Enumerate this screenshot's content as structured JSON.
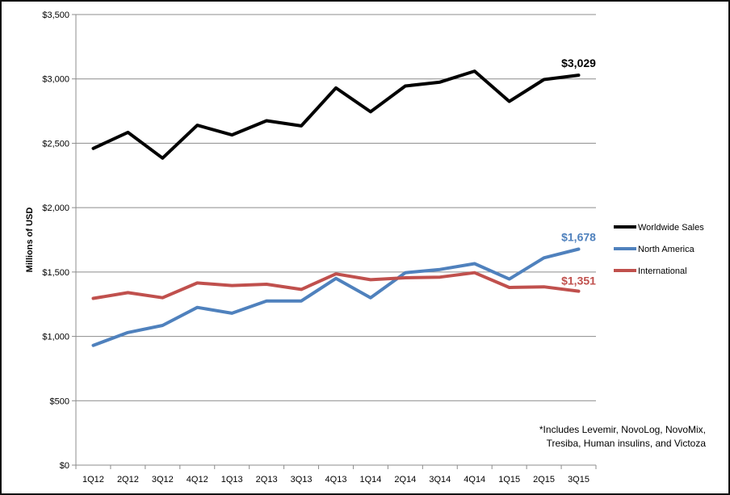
{
  "chart_data": {
    "type": "line",
    "ylabel": "Millions of USD",
    "xlabel": "",
    "ylim": [
      0,
      3500
    ],
    "yticks": [
      0,
      500,
      1000,
      1500,
      2000,
      2500,
      3000,
      3500
    ],
    "ytick_labels": [
      "$0",
      "$500",
      "$1,000",
      "$1,500",
      "$2,000",
      "$2,500",
      "$3,000",
      "$3,500"
    ],
    "categories": [
      "1Q12",
      "2Q12",
      "3Q12",
      "4Q12",
      "1Q13",
      "2Q13",
      "3Q13",
      "4Q13",
      "1Q14",
      "2Q14",
      "3Q14",
      "4Q14",
      "1Q15",
      "2Q15",
      "3Q15"
    ],
    "grid": "horizontal",
    "legend_position": "right",
    "series": [
      {
        "name": "Worldwide Sales",
        "color": "#000000",
        "values": [
          2460,
          2585,
          2385,
          2640,
          2565,
          2675,
          2635,
          2930,
          2745,
          2945,
          2975,
          3060,
          2825,
          2995,
          3029
        ],
        "end_label": "$3,029"
      },
      {
        "name": "North America",
        "color": "#4f81bd",
        "values": [
          930,
          1030,
          1085,
          1225,
          1180,
          1275,
          1275,
          1450,
          1300,
          1495,
          1520,
          1565,
          1445,
          1610,
          1678
        ],
        "end_label": "$1,678"
      },
      {
        "name": "International",
        "color": "#c0504d",
        "values": [
          1295,
          1340,
          1300,
          1415,
          1395,
          1405,
          1365,
          1485,
          1440,
          1455,
          1460,
          1495,
          1380,
          1385,
          1351
        ],
        "end_label": "$1,351"
      }
    ]
  },
  "note": {
    "line1": "*Includes Levemir, NovoLog, NovoMix,",
    "line2": "Tresiba, Human insulins, and Victoza"
  }
}
